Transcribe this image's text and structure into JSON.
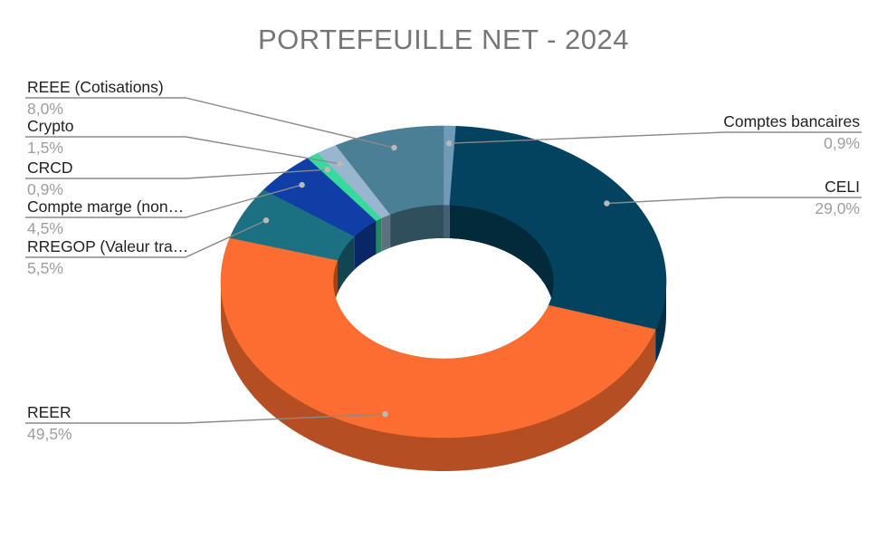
{
  "chart_data": {
    "type": "pie",
    "title": "PORTEFEUILLE NET - 2024",
    "style": "3d-donut",
    "slices": [
      {
        "key": "comptes",
        "name": "Comptes bancaires",
        "pct_label": "0,9%",
        "value": 0.9,
        "color": "#6f9ab8"
      },
      {
        "key": "celi",
        "name": "CELI",
        "pct_label": "29,0%",
        "value": 29.0,
        "color": "#03435f"
      },
      {
        "key": "reer",
        "name": "REER",
        "pct_label": "49,5%",
        "value": 49.5,
        "color": "#fb6d30"
      },
      {
        "key": "rregop",
        "name": "RREGOP (Valeur tra…",
        "pct_label": "5,5%",
        "value": 5.5,
        "color": "#1b7082"
      },
      {
        "key": "marge",
        "name": "Compte marge (non…",
        "pct_label": "4,5%",
        "value": 4.5,
        "color": "#0f3fa6"
      },
      {
        "key": "crcd",
        "name": "CRCD",
        "pct_label": "0,9%",
        "value": 0.9,
        "color": "#38d99d"
      },
      {
        "key": "crypto",
        "name": "Crypto",
        "pct_label": "1,5%",
        "value": 1.5,
        "color": "#98b7cf"
      },
      {
        "key": "reee",
        "name": "REEE (Cotisations)",
        "pct_label": "8,0%",
        "value": 8.0,
        "color": "#4b7f95"
      }
    ]
  }
}
